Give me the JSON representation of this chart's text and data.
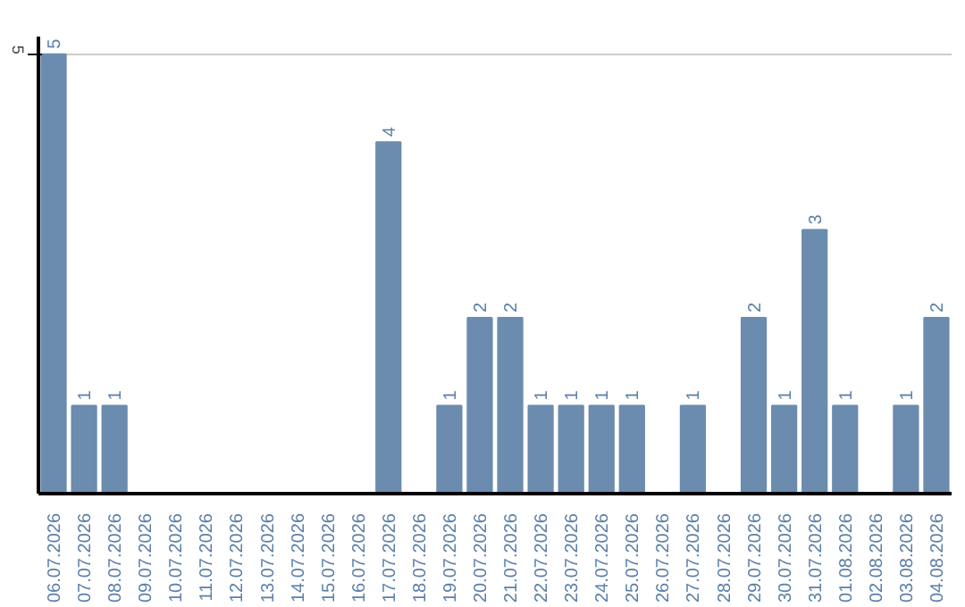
{
  "chart_data": {
    "type": "bar",
    "categories": [
      "06.07.2026",
      "07.07.2026",
      "08.07.2026",
      "09.07.2026",
      "10.07.2026",
      "11.07.2026",
      "12.07.2026",
      "13.07.2026",
      "14.07.2026",
      "15.07.2026",
      "16.07.2026",
      "17.07.2026",
      "18.07.2026",
      "19.07.2026",
      "20.07.2026",
      "21.07.2026",
      "22.07.2026",
      "23.07.2026",
      "24.07.2026",
      "25.07.2026",
      "26.07.2026",
      "27.07.2026",
      "28.07.2026",
      "29.07.2026",
      "30.07.2026",
      "31.07.2026",
      "01.08.2026",
      "02.08.2026",
      "03.08.2026",
      "04.08.2026"
    ],
    "values": [
      5,
      1,
      1,
      null,
      null,
      null,
      null,
      null,
      null,
      null,
      null,
      4,
      null,
      1,
      2,
      2,
      1,
      1,
      1,
      1,
      null,
      1,
      null,
      2,
      1,
      3,
      1,
      null,
      1,
      2
    ],
    "color": "#6b8cae",
    "ylim": [
      0,
      5.2
    ],
    "yticks": [
      5
    ],
    "grid": "y",
    "data_labels": true
  }
}
